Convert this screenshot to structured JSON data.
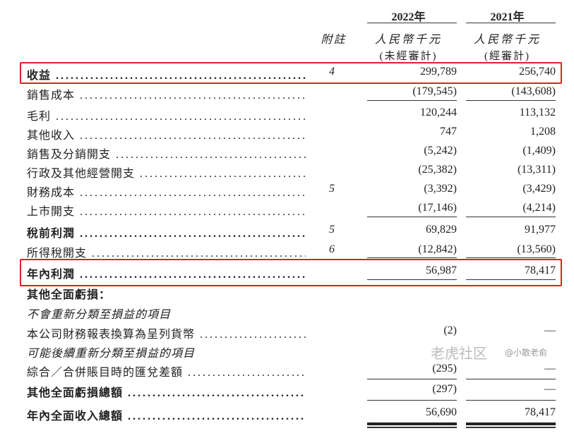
{
  "header": {
    "col_2022": "2022年",
    "col_2021": "2021年",
    "note": "附註",
    "currency_2022": "人民幣千元",
    "currency_2021": "人民幣千元",
    "audit_2022": "(未經審計)",
    "audit_2021": "(經審計)"
  },
  "rows": [
    {
      "label": "收益",
      "note": "4",
      "v2022": "299,789",
      "v2021": "256,740",
      "bold": true,
      "highlighted": true
    },
    {
      "label": "銷售成本",
      "note": "",
      "v2022": "(179,545)",
      "v2021": "(143,608)"
    },
    {
      "label": "毛利",
      "note": "",
      "v2022": "120,244",
      "v2021": "113,132"
    },
    {
      "label": "其他收入",
      "note": "",
      "v2022": "747",
      "v2021": "1,208"
    },
    {
      "label": "銷售及分銷開支",
      "note": "",
      "v2022": "(5,242)",
      "v2021": "(1,409)"
    },
    {
      "label": "行政及其他經營開支",
      "note": "",
      "v2022": "(25,382)",
      "v2021": "(13,311)"
    },
    {
      "label": "財務成本",
      "note": "5",
      "v2022": "(3,392)",
      "v2021": "(3,429)"
    },
    {
      "label": "上市開支",
      "note": "",
      "v2022": "(17,146)",
      "v2021": "(4,214)"
    },
    {
      "label": "稅前利潤",
      "note": "5",
      "v2022": "69,829",
      "v2021": "91,977",
      "bold": true
    },
    {
      "label": "所得稅開支",
      "note": "6",
      "v2022": "(12,842)",
      "v2021": "(13,560)"
    },
    {
      "label": "年內利潤",
      "note": "",
      "v2022": "56,987",
      "v2021": "78,417",
      "bold": true,
      "highlighted": true
    },
    {
      "label": "其他全面虧損：",
      "note": "",
      "v2022": "",
      "v2021": "",
      "bold": true
    },
    {
      "label": "不會重新分類至損益的項目",
      "note": "",
      "v2022": "",
      "v2021": "",
      "italic": true
    },
    {
      "label": "本公司財務報表換算為呈列貨幣",
      "note": "",
      "v2022": "(2)",
      "v2021": "—"
    },
    {
      "label": "可能後續重新分類至損益的項目",
      "note": "",
      "v2022": "",
      "v2021": "",
      "italic": true
    },
    {
      "label": "綜合／合併賬目時的匯兌差額",
      "note": "",
      "v2022": "(295)",
      "v2021": "—"
    },
    {
      "label": "其他全面虧損總額",
      "note": "",
      "v2022": "(297)",
      "v2021": "—",
      "bold": true
    },
    {
      "label": "年內全面收入總額",
      "note": "",
      "v2022": "56,690",
      "v2021": "78,417",
      "bold": true
    }
  ],
  "colors": {
    "highlight_box": "#e02020"
  },
  "watermark": {
    "line1": "老虎社区",
    "line2": "@小散老俞"
  }
}
